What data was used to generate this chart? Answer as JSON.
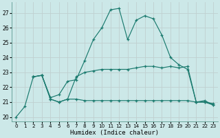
{
  "xlabel": "Humidex (Indice chaleur)",
  "background_color": "#cce8e8",
  "grid_color": "#b0d8d8",
  "line_color": "#1a7a6e",
  "xlim": [
    -0.5,
    23.5
  ],
  "ylim": [
    19.7,
    27.7
  ],
  "yticks": [
    20,
    21,
    22,
    23,
    24,
    25,
    26,
    27
  ],
  "xticks": [
    0,
    1,
    2,
    3,
    4,
    5,
    6,
    7,
    8,
    9,
    10,
    11,
    12,
    13,
    14,
    15,
    16,
    17,
    18,
    19,
    20,
    21,
    22,
    23
  ],
  "line1_x": [
    0,
    1,
    2,
    3,
    4,
    5,
    6,
    7,
    8,
    9,
    10,
    11,
    12,
    13,
    14,
    15,
    16,
    17,
    18,
    19,
    20,
    21,
    22,
    23
  ],
  "line1_y": [
    20.0,
    20.7,
    22.7,
    22.8,
    21.3,
    21.5,
    22.4,
    22.5,
    23.8,
    25.2,
    26.0,
    27.2,
    27.3,
    25.2,
    26.5,
    26.8,
    26.6,
    25.5,
    24.0,
    23.5,
    23.2,
    21.0,
    21.1,
    20.8
  ],
  "line2_x": [
    2,
    3,
    4,
    5,
    6,
    7,
    8,
    9,
    10,
    11,
    12,
    13,
    14,
    15,
    16,
    17,
    18,
    19,
    20,
    21,
    22,
    23
  ],
  "line2_y": [
    22.7,
    22.8,
    21.2,
    21.0,
    21.2,
    22.7,
    23.0,
    23.1,
    23.2,
    23.2,
    23.2,
    23.2,
    23.3,
    23.4,
    23.4,
    23.3,
    23.4,
    23.3,
    23.4,
    21.0,
    21.0,
    20.9
  ],
  "line3_x": [
    2,
    3,
    4,
    5,
    6,
    7,
    8,
    9,
    10,
    11,
    12,
    13,
    14,
    15,
    16,
    17,
    18,
    19,
    20,
    21,
    22,
    23
  ],
  "line3_y": [
    22.7,
    22.8,
    21.2,
    21.0,
    21.2,
    21.2,
    21.1,
    21.1,
    21.1,
    21.1,
    21.1,
    21.1,
    21.1,
    21.1,
    21.1,
    21.1,
    21.1,
    21.1,
    21.1,
    21.0,
    21.0,
    20.8
  ]
}
